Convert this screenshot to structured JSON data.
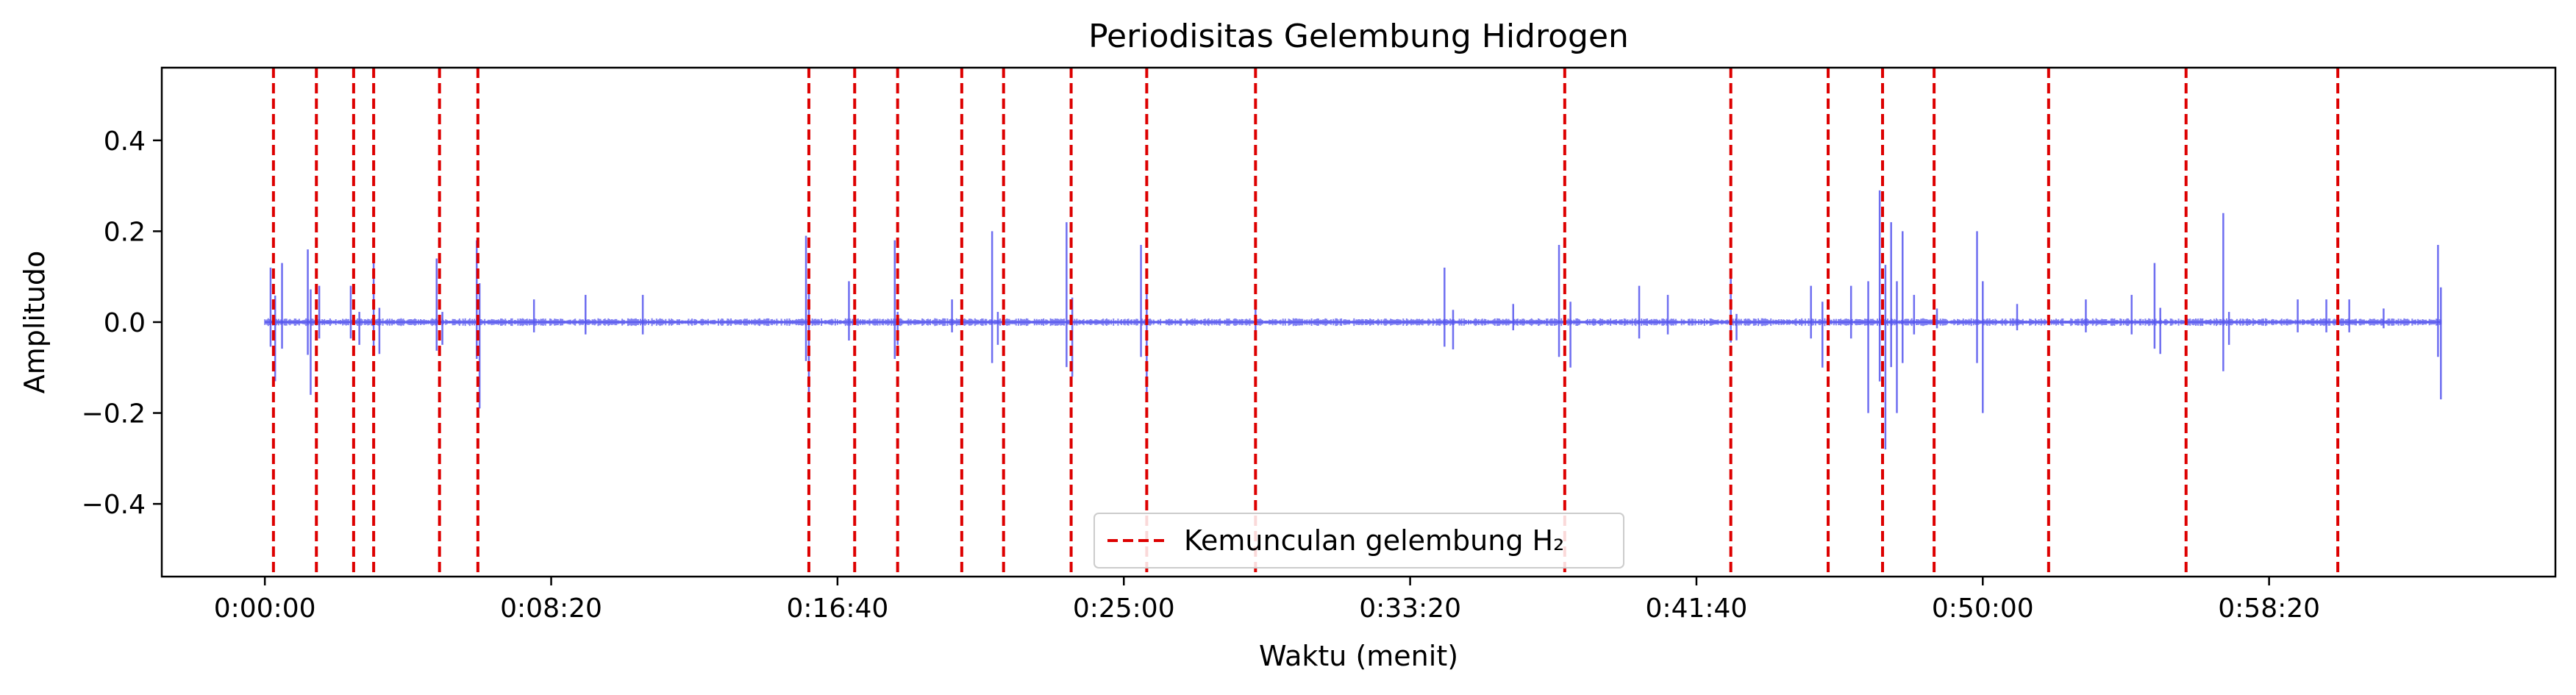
{
  "chart_data": {
    "type": "line",
    "title": "Periodisitas Gelembung Hidrogen",
    "xlabel": "Waktu (menit)",
    "ylabel": "Amplitudo",
    "xlim": [
      -180,
      4000
    ],
    "ylim": [
      -0.56,
      0.56
    ],
    "x_ticks": [
      0,
      500,
      1000,
      1500,
      2000,
      2500,
      3000,
      3500
    ],
    "x_tick_labels": [
      "0:00:00",
      "0:08:20",
      "0:16:40",
      "0:25:00",
      "0:33:20",
      "0:41:40",
      "0:50:00",
      "0:58:20"
    ],
    "y_ticks": [
      -0.4,
      -0.2,
      0.0,
      0.2,
      0.4
    ],
    "y_tick_labels": [
      "−0.4",
      "−0.2",
      "0.0",
      "0.2",
      "0.4"
    ],
    "grid": false,
    "legend_position": "lower-center",
    "series": [
      {
        "name": "",
        "kind": "waveform",
        "color": "#5555ee",
        "x_range": [
          0,
          3800
        ],
        "baseline_amplitude": 0.006,
        "spikes": [
          {
            "x": 10,
            "y": 0.12
          },
          {
            "x": 18,
            "y": -0.13
          },
          {
            "x": 30,
            "y": 0.13
          },
          {
            "x": 75,
            "y": 0.16
          },
          {
            "x": 80,
            "y": -0.16
          },
          {
            "x": 95,
            "y": 0.08
          },
          {
            "x": 150,
            "y": 0.08
          },
          {
            "x": 165,
            "y": -0.05
          },
          {
            "x": 190,
            "y": 0.13
          },
          {
            "x": 200,
            "y": -0.07
          },
          {
            "x": 300,
            "y": 0.14
          },
          {
            "x": 310,
            "y": -0.05
          },
          {
            "x": 370,
            "y": 0.18
          },
          {
            "x": 375,
            "y": -0.19
          },
          {
            "x": 470,
            "y": 0.05
          },
          {
            "x": 560,
            "y": 0.06
          },
          {
            "x": 660,
            "y": 0.06
          },
          {
            "x": 945,
            "y": 0.19
          },
          {
            "x": 950,
            "y": -0.17
          },
          {
            "x": 1020,
            "y": 0.09
          },
          {
            "x": 1100,
            "y": 0.18
          },
          {
            "x": 1105,
            "y": -0.05
          },
          {
            "x": 1200,
            "y": 0.05
          },
          {
            "x": 1270,
            "y": 0.2
          },
          {
            "x": 1280,
            "y": -0.05
          },
          {
            "x": 1400,
            "y": 0.22
          },
          {
            "x": 1410,
            "y": -0.12
          },
          {
            "x": 1530,
            "y": 0.17
          },
          {
            "x": 1540,
            "y": -0.16
          },
          {
            "x": 1730,
            "y": 0.05
          },
          {
            "x": 2060,
            "y": 0.12
          },
          {
            "x": 2075,
            "y": -0.06
          },
          {
            "x": 2180,
            "y": 0.04
          },
          {
            "x": 2260,
            "y": 0.17
          },
          {
            "x": 2280,
            "y": -0.1
          },
          {
            "x": 2400,
            "y": 0.08
          },
          {
            "x": 2450,
            "y": 0.06
          },
          {
            "x": 2560,
            "y": 0.1
          },
          {
            "x": 2570,
            "y": -0.04
          },
          {
            "x": 2700,
            "y": 0.08
          },
          {
            "x": 2720,
            "y": -0.1
          },
          {
            "x": 2770,
            "y": 0.08
          },
          {
            "x": 2800,
            "y": -0.2
          },
          {
            "x": 2820,
            "y": 0.29
          },
          {
            "x": 2830,
            "y": -0.28
          },
          {
            "x": 2840,
            "y": 0.22
          },
          {
            "x": 2850,
            "y": -0.2
          },
          {
            "x": 2860,
            "y": 0.2
          },
          {
            "x": 2880,
            "y": 0.06
          },
          {
            "x": 2920,
            "y": 0.03
          },
          {
            "x": 2990,
            "y": 0.2
          },
          {
            "x": 3000,
            "y": -0.2
          },
          {
            "x": 3060,
            "y": 0.04
          },
          {
            "x": 3180,
            "y": 0.05
          },
          {
            "x": 3260,
            "y": 0.06
          },
          {
            "x": 3300,
            "y": 0.13
          },
          {
            "x": 3310,
            "y": -0.07
          },
          {
            "x": 3420,
            "y": 0.24
          },
          {
            "x": 3430,
            "y": -0.05
          },
          {
            "x": 3550,
            "y": 0.05
          },
          {
            "x": 3600,
            "y": 0.05
          },
          {
            "x": 3640,
            "y": 0.05
          },
          {
            "x": 3700,
            "y": 0.03
          },
          {
            "x": 3795,
            "y": 0.17
          },
          {
            "x": 3800,
            "y": -0.17
          }
        ]
      },
      {
        "name": "Kemunculan gelembung H₂",
        "kind": "vertical-lines",
        "color": "#dd0000",
        "style": "dashed",
        "x": [
          15,
          90,
          155,
          190,
          305,
          372,
          950,
          1030,
          1105,
          1217,
          1290,
          1408,
          1540,
          1730,
          2270,
          2560,
          2730,
          2825,
          2915,
          3115,
          3355,
          3620
        ]
      }
    ]
  }
}
